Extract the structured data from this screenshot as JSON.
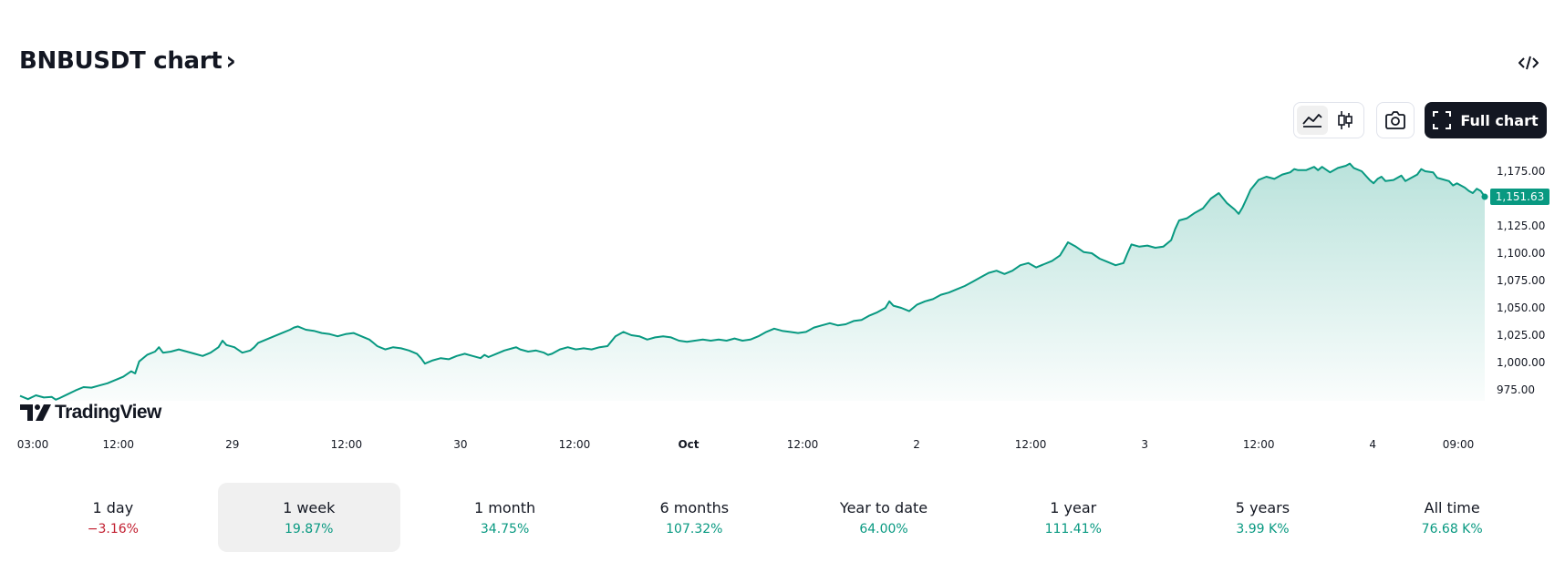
{
  "header": {
    "title": "BNBUSDT chart",
    "title_chevron": "›"
  },
  "toolbar": {
    "full_chart_label": "Full chart",
    "icons": [
      "embed-code-icon",
      "area-chart-icon",
      "candlestick-icon",
      "camera-icon",
      "fullscreen-icon"
    ]
  },
  "logo": {
    "text": "TradingView"
  },
  "colors": {
    "line": "#089981",
    "fill_top": "#089981",
    "price_badge": "#089981",
    "negative": "#c22031",
    "positive": "#089981"
  },
  "chart_data": {
    "type": "area",
    "symbol": "BNBUSDT",
    "ylim": [
      965,
      1190
    ],
    "y_ticks": [
      975,
      1000,
      1025,
      1050,
      1075,
      1100,
      1125,
      1150,
      1175
    ],
    "y_tick_labels": [
      "975.00",
      "1,000.00",
      "1,025.00",
      "1,050.00",
      "1,075.00",
      "1,100.00",
      "1,125.00",
      "",
      "1,175.00"
    ],
    "x_range_hours": [
      0,
      190
    ],
    "x_ticks": [
      {
        "label": "03:00",
        "h": 0
      },
      {
        "label": "12:00",
        "h": 9
      },
      {
        "label": "29",
        "h": 21
      },
      {
        "label": "12:00",
        "h": 33
      },
      {
        "label": "30",
        "h": 45
      },
      {
        "label": "12:00",
        "h": 57
      },
      {
        "label": "Oct",
        "h": 69
      },
      {
        "label": "12:00",
        "h": 81
      },
      {
        "label": "2",
        "h": 93
      },
      {
        "label": "12:00",
        "h": 105
      },
      {
        "label": "3",
        "h": 117
      },
      {
        "label": "12:00",
        "h": 129
      },
      {
        "label": "4",
        "h": 141
      },
      {
        "label": "09:00",
        "h": 150
      }
    ],
    "last_price": "1,151.63",
    "series": [
      {
        "points": [
          [
            0,
            969.5
          ],
          [
            2,
            966.5
          ],
          [
            4,
            970
          ],
          [
            6,
            968
          ],
          [
            8,
            968.5
          ],
          [
            9,
            966
          ],
          [
            10,
            967.5
          ],
          [
            12,
            971
          ],
          [
            14,
            974.5
          ],
          [
            16,
            977.5
          ],
          [
            18,
            977
          ],
          [
            20,
            979
          ],
          [
            22,
            981
          ],
          [
            24,
            984
          ],
          [
            26,
            987
          ],
          [
            28,
            992
          ],
          [
            29,
            990
          ],
          [
            30,
            1001
          ],
          [
            32,
            1007
          ],
          [
            34,
            1010
          ],
          [
            35,
            1014
          ],
          [
            36,
            1009
          ],
          [
            38,
            1010
          ],
          [
            40,
            1012
          ],
          [
            42,
            1010
          ],
          [
            44,
            1008
          ],
          [
            46,
            1006
          ],
          [
            48,
            1009
          ],
          [
            50,
            1014
          ],
          [
            51,
            1020
          ],
          [
            52,
            1016
          ],
          [
            54,
            1014
          ],
          [
            56,
            1009
          ],
          [
            58,
            1011
          ],
          [
            59,
            1014
          ],
          [
            60,
            1018
          ],
          [
            62,
            1021
          ],
          [
            64,
            1024
          ],
          [
            66,
            1027
          ],
          [
            68,
            1030
          ],
          [
            69,
            1032
          ],
          [
            70,
            1033
          ],
          [
            72,
            1030
          ],
          [
            74,
            1029
          ],
          [
            76,
            1027
          ],
          [
            78,
            1026
          ],
          [
            80,
            1024
          ],
          [
            82,
            1026
          ],
          [
            84,
            1027
          ],
          [
            86,
            1024
          ],
          [
            88,
            1021
          ],
          [
            89,
            1018
          ],
          [
            90,
            1015
          ],
          [
            92,
            1012
          ],
          [
            94,
            1014
          ],
          [
            96,
            1013
          ],
          [
            98,
            1011
          ],
          [
            100,
            1008
          ],
          [
            101,
            1004
          ],
          [
            102,
            999
          ],
          [
            104,
            1002
          ],
          [
            106,
            1004
          ],
          [
            108,
            1003
          ],
          [
            110,
            1006
          ],
          [
            112,
            1008
          ],
          [
            114,
            1006
          ],
          [
            116,
            1004
          ],
          [
            117,
            1007
          ],
          [
            118,
            1005
          ],
          [
            120,
            1008
          ],
          [
            122,
            1011
          ],
          [
            124,
            1013
          ],
          [
            125,
            1014
          ],
          [
            126,
            1012
          ],
          [
            128,
            1010
          ],
          [
            130,
            1011
          ],
          [
            132,
            1009
          ],
          [
            133,
            1007
          ],
          [
            134,
            1008
          ],
          [
            136,
            1012
          ],
          [
            138,
            1014
          ],
          [
            140,
            1012
          ],
          [
            142,
            1013
          ],
          [
            144,
            1012
          ],
          [
            146,
            1014
          ],
          [
            148,
            1015
          ],
          [
            150,
            1024
          ],
          [
            152,
            1028
          ],
          [
            154,
            1025
          ],
          [
            156,
            1024
          ],
          [
            158,
            1021
          ],
          [
            160,
            1023
          ],
          [
            162,
            1024
          ],
          [
            164,
            1023
          ],
          [
            166,
            1020
          ],
          [
            168,
            1019
          ],
          [
            170,
            1020
          ],
          [
            172,
            1021
          ],
          [
            174,
            1020
          ],
          [
            176,
            1021
          ],
          [
            178,
            1020
          ],
          [
            180,
            1022
          ],
          [
            182,
            1020
          ],
          [
            184,
            1021
          ],
          [
            186,
            1024
          ],
          [
            188,
            1028
          ],
          [
            190,
            1031
          ],
          [
            192,
            1029
          ],
          [
            194,
            1028
          ],
          [
            196,
            1027
          ],
          [
            198,
            1028
          ],
          [
            200,
            1032
          ],
          [
            202,
            1034
          ],
          [
            204,
            1036
          ],
          [
            206,
            1034
          ],
          [
            208,
            1035
          ],
          [
            210,
            1038
          ],
          [
            212,
            1039
          ],
          [
            214,
            1043
          ],
          [
            216,
            1046
          ],
          [
            218,
            1050
          ],
          [
            219,
            1056
          ],
          [
            220,
            1052
          ],
          [
            222,
            1050
          ],
          [
            224,
            1047
          ],
          [
            226,
            1053
          ],
          [
            228,
            1056
          ],
          [
            230,
            1058
          ],
          [
            232,
            1062
          ],
          [
            234,
            1064
          ],
          [
            236,
            1067
          ],
          [
            238,
            1070
          ],
          [
            240,
            1074
          ],
          [
            242,
            1078
          ],
          [
            244,
            1082
          ],
          [
            246,
            1084
          ],
          [
            248,
            1081
          ],
          [
            250,
            1084
          ],
          [
            252,
            1089
          ],
          [
            254,
            1091
          ],
          [
            256,
            1087
          ],
          [
            258,
            1090
          ],
          [
            260,
            1093
          ],
          [
            262,
            1098
          ],
          [
            263,
            1104
          ],
          [
            264,
            1110
          ],
          [
            266,
            1106
          ],
          [
            268,
            1101
          ],
          [
            270,
            1100
          ],
          [
            272,
            1095
          ],
          [
            274,
            1092
          ],
          [
            276,
            1089
          ],
          [
            278,
            1091
          ],
          [
            279,
            1100
          ],
          [
            280,
            1108
          ],
          [
            282,
            1106
          ],
          [
            284,
            1107
          ],
          [
            286,
            1105
          ],
          [
            288,
            1106
          ],
          [
            290,
            1112
          ],
          [
            291,
            1122
          ],
          [
            292,
            1130
          ],
          [
            294,
            1132
          ],
          [
            296,
            1137
          ],
          [
            298,
            1141
          ],
          [
            300,
            1150
          ],
          [
            302,
            1155
          ],
          [
            304,
            1146
          ],
          [
            306,
            1140
          ],
          [
            307,
            1136
          ],
          [
            308,
            1142
          ],
          [
            309,
            1150
          ],
          [
            310,
            1158
          ],
          [
            312,
            1167
          ],
          [
            314,
            1170
          ],
          [
            316,
            1168
          ],
          [
            318,
            1172
          ],
          [
            320,
            1174
          ],
          [
            321,
            1177
          ],
          [
            322,
            1176
          ],
          [
            324,
            1176
          ],
          [
            326,
            1179
          ],
          [
            327,
            1176
          ],
          [
            328,
            1179
          ],
          [
            330,
            1174
          ],
          [
            332,
            1178
          ],
          [
            334,
            1180
          ],
          [
            335,
            1182
          ],
          [
            336,
            1178
          ],
          [
            338,
            1175
          ],
          [
            340,
            1167
          ],
          [
            341,
            1164
          ],
          [
            342,
            1168
          ],
          [
            343,
            1170
          ],
          [
            344,
            1166
          ],
          [
            346,
            1167
          ],
          [
            348,
            1171
          ],
          [
            349,
            1166
          ],
          [
            350,
            1168
          ],
          [
            352,
            1172
          ],
          [
            353,
            1177
          ],
          [
            354,
            1175
          ],
          [
            356,
            1174
          ],
          [
            357,
            1169
          ],
          [
            358,
            1168
          ],
          [
            360,
            1166
          ],
          [
            361,
            1162
          ],
          [
            362,
            1164
          ],
          [
            364,
            1160
          ],
          [
            365,
            1157
          ],
          [
            366,
            1155
          ],
          [
            367,
            1159
          ],
          [
            368,
            1157
          ],
          [
            369,
            1151.63
          ]
        ]
      }
    ]
  },
  "periods": [
    {
      "label": "1 day",
      "value": "−3.16%",
      "sign": "neg",
      "active": false
    },
    {
      "label": "1 week",
      "value": "19.87%",
      "sign": "pos",
      "active": true
    },
    {
      "label": "1 month",
      "value": "34.75%",
      "sign": "pos",
      "active": false
    },
    {
      "label": "6 months",
      "value": "107.32%",
      "sign": "pos",
      "active": false
    },
    {
      "label": "Year to date",
      "value": "64.00%",
      "sign": "pos",
      "active": false
    },
    {
      "label": "1 year",
      "value": "111.41%",
      "sign": "pos",
      "active": false
    },
    {
      "label": "5 years",
      "value": "3.99 K%",
      "sign": "pos",
      "active": false
    },
    {
      "label": "All time",
      "value": "76.68 K%",
      "sign": "pos",
      "active": false
    }
  ]
}
